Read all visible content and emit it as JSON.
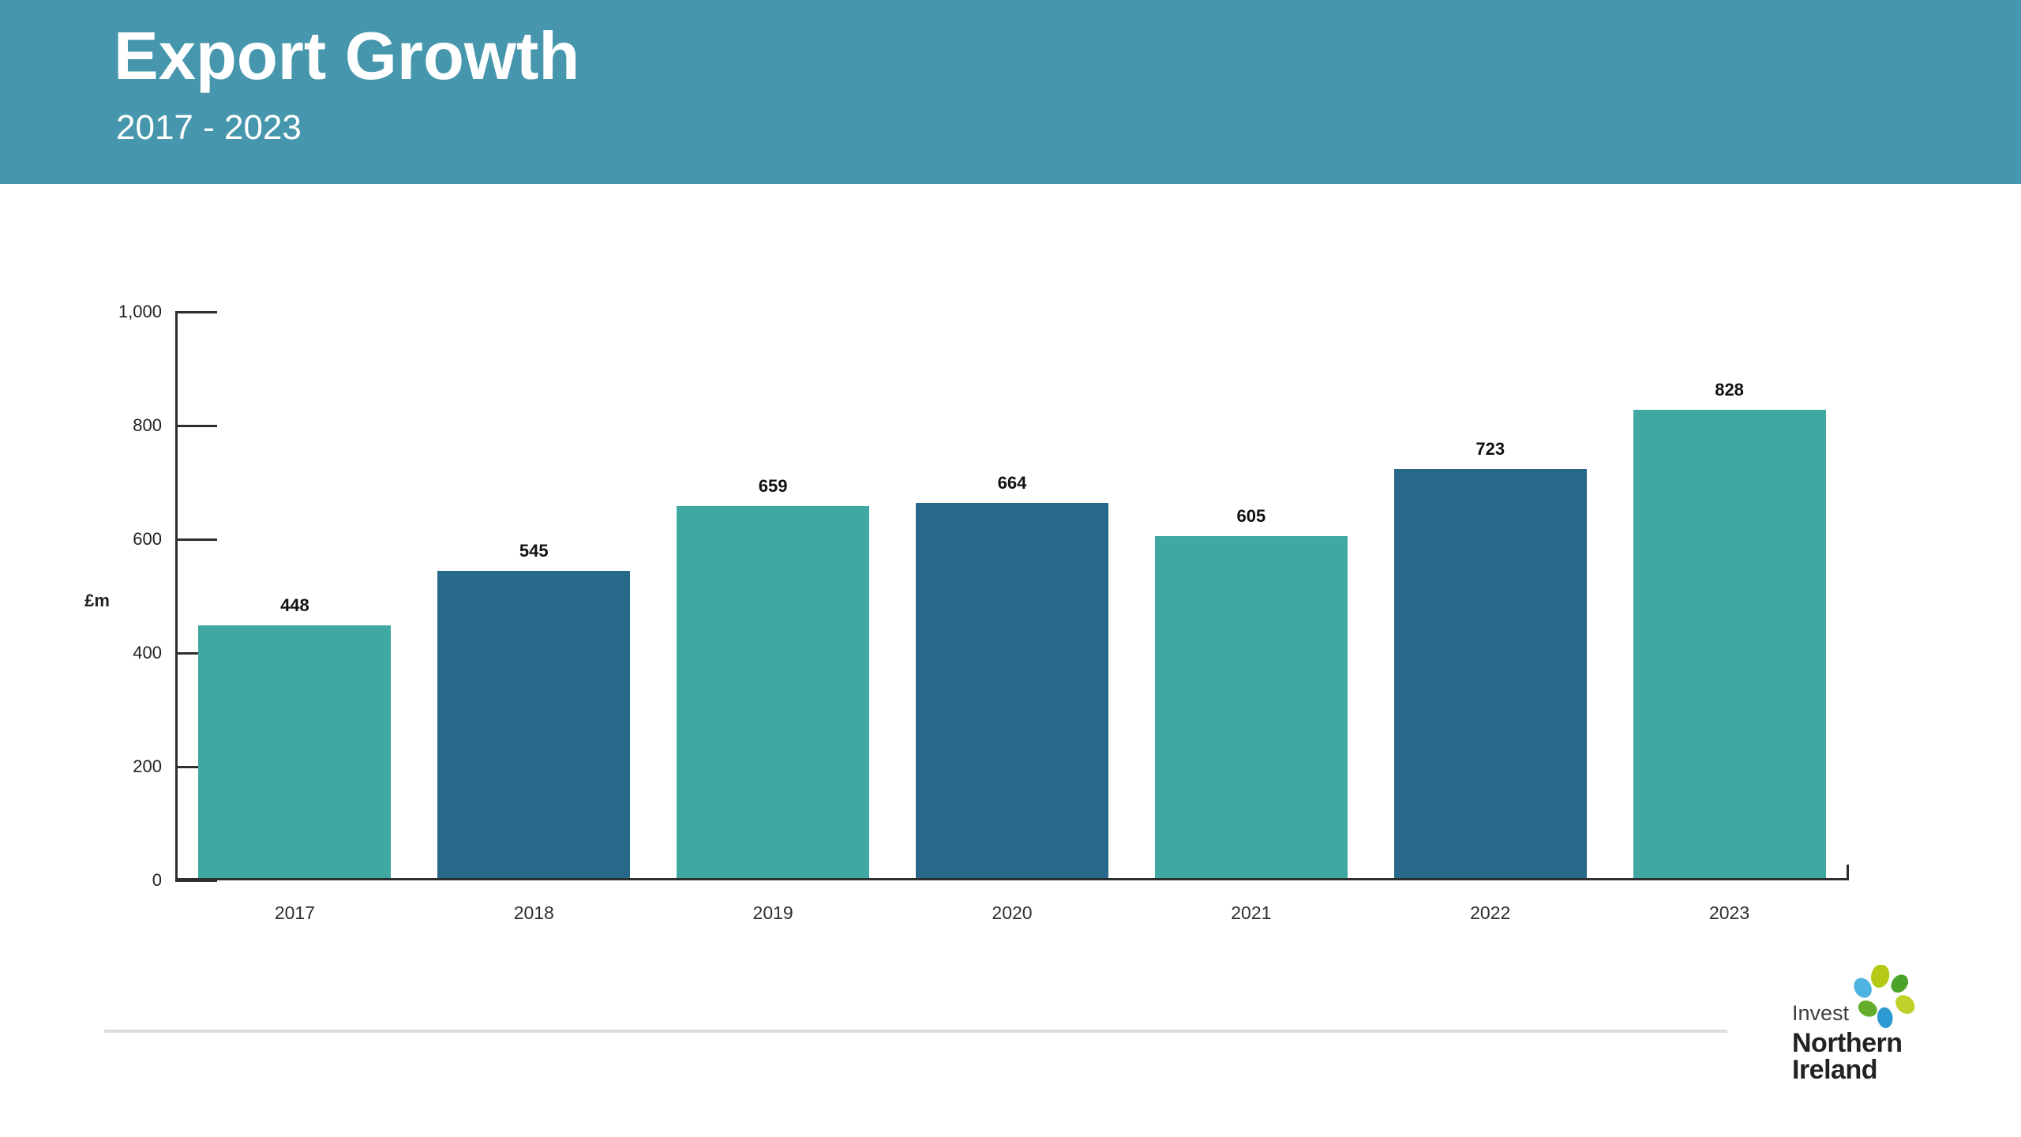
{
  "header": {
    "title": "Export Growth",
    "subtitle": "2017 - 2023",
    "background_color": "#4697ad",
    "text_color": "#ffffff"
  },
  "chart_data": {
    "type": "bar",
    "title": "Export Growth 2017 - 2023",
    "categories": [
      "2017",
      "2018",
      "2019",
      "2020",
      "2021",
      "2022",
      "2023"
    ],
    "values": [
      448,
      545,
      659,
      664,
      605,
      723,
      828
    ],
    "value_labels": [
      "448",
      "545",
      "659",
      "664",
      "605",
      "723",
      "828"
    ],
    "bar_colors": [
      "#3fa8a1",
      "#28688a",
      "#3fa8a1",
      "#28688a",
      "#3fa8a1",
      "#28688a",
      "#3fa8a1"
    ],
    "xlabel": "",
    "ylabel": "£m",
    "ylim": [
      0,
      1000
    ],
    "yticks": [
      {
        "value": 0,
        "label": "0"
      },
      {
        "value": 200,
        "label": "200"
      },
      {
        "value": 400,
        "label": "400"
      },
      {
        "value": 600,
        "label": "600"
      },
      {
        "value": 800,
        "label": "800"
      },
      {
        "value": 1000,
        "label": "1,000"
      }
    ],
    "grid": false,
    "legend_position": "none",
    "axis_color": "#2e2e2e"
  },
  "footer": {
    "logo": {
      "line1": "Invest",
      "line2": "Northern",
      "line3": "Ireland",
      "mark": "flower-icon",
      "petal_colors": {
        "light_blue": "#4fb3e2",
        "lime_top": "#b5ca17",
        "green_top_right": "#4ca32a",
        "green_mid_left": "#63ad2a",
        "blue_bottom": "#2d9ad3",
        "lime_right": "#c0d22a"
      }
    },
    "divider_color": "#dddddd"
  }
}
